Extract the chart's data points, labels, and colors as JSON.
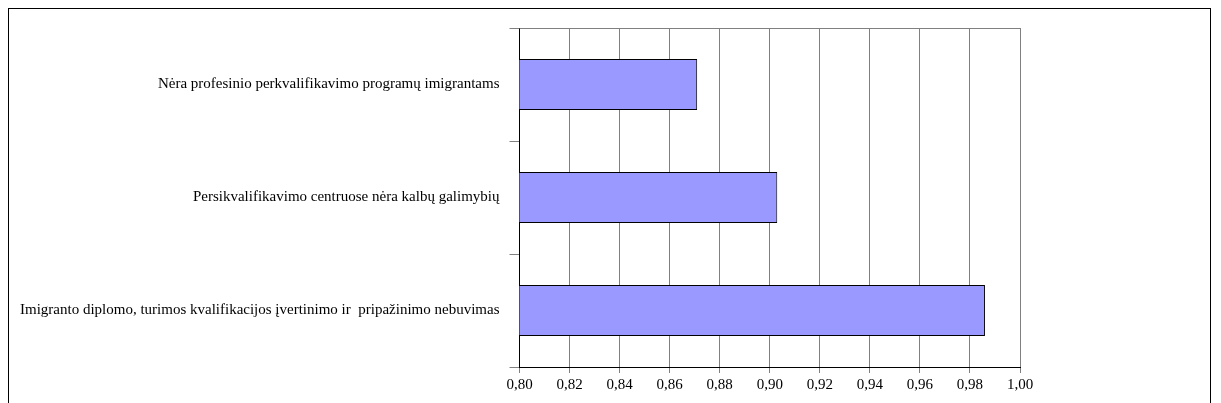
{
  "chart_data": {
    "type": "bar",
    "orientation": "horizontal",
    "categories": [
      "Nėra profesinio perkvalifikavimo programų imigrantams",
      "Persikvalifikavimo centruose nėra kalbų galimybių",
      "Imigranto diplomo, turimos kvalifikacijos įvertinimo ir  pripažinimo nebuvimas"
    ],
    "values": [
      0.871,
      0.903,
      0.986
    ],
    "color": "#9999ff",
    "xlim": [
      0.8,
      1.0
    ],
    "xticks": [
      {
        "value": 0.8,
        "label": "0,80"
      },
      {
        "value": 0.82,
        "label": "0,82"
      },
      {
        "value": 0.84,
        "label": "0,84"
      },
      {
        "value": 0.86,
        "label": "0,86"
      },
      {
        "value": 0.88,
        "label": "0,88"
      },
      {
        "value": 0.9,
        "label": "0,90"
      },
      {
        "value": 0.92,
        "label": "0,92"
      },
      {
        "value": 0.94,
        "label": "0,94"
      },
      {
        "value": 0.96,
        "label": "0,96"
      },
      {
        "value": 0.98,
        "label": "0,98"
      },
      {
        "value": 1.0,
        "label": "1,00"
      }
    ],
    "grid": "x",
    "legend": false
  }
}
